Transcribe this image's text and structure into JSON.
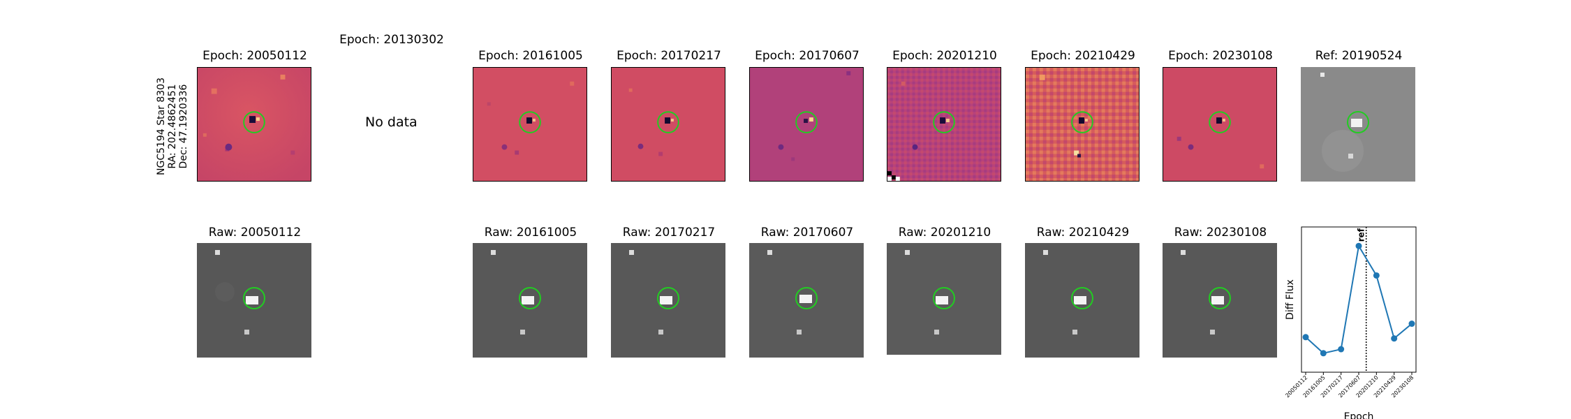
{
  "row_label": [
    "NGC5194 Star 8303",
    "RA: 202.4862451",
    "Dec: 47.1920336"
  ],
  "diff_titles": [
    "Epoch: 20050112",
    "Epoch: 20130302",
    "Epoch: 20161005",
    "Epoch: 20170217",
    "Epoch: 20170607",
    "Epoch: 20201210",
    "Epoch: 20210429",
    "Epoch: 20230108"
  ],
  "ref_title": "Ref: 20190524",
  "no_data": "No data",
  "raw_titles": [
    "Raw: 20050112",
    "Raw: 20161005",
    "Raw: 20170217",
    "Raw: 20170607",
    "Raw: 20201210",
    "Raw: 20210429",
    "Raw: 20230108"
  ],
  "colors": {
    "diff_bg": "#cc4b62",
    "diff_bg_alt": "#b2427a",
    "raw_bg": "#555555",
    "ref_bg": "#8a8a8a",
    "circle": "#22cc22",
    "line": "#1f77b4"
  },
  "chart_data": {
    "type": "line",
    "categories": [
      "20050112",
      "20161005",
      "20170217",
      "20170607",
      "20201210",
      "20210429",
      "20230108"
    ],
    "series": [
      {
        "values": [
          0.22,
          0.1,
          0.13,
          0.9,
          0.68,
          0.21,
          0.32
        ]
      }
    ],
    "ylabel": "Diff Flux",
    "xlabel": "Epoch",
    "ref_marker_label": "ref",
    "ylim": [
      0,
      1.0
    ]
  }
}
